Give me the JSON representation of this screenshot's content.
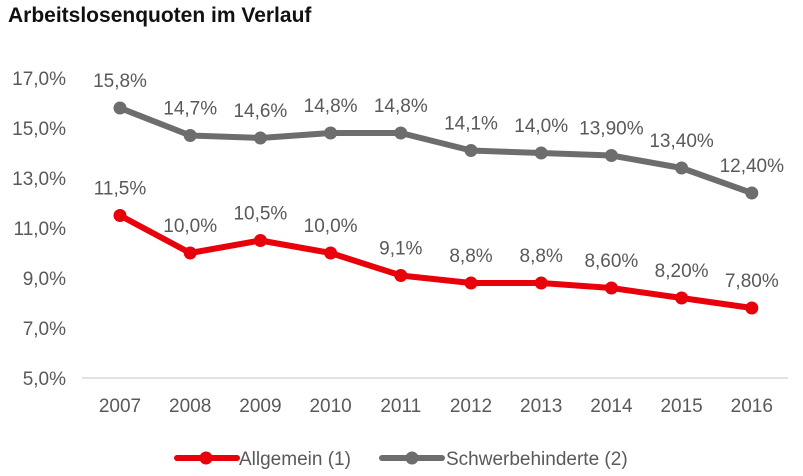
{
  "chart_data": {
    "type": "line",
    "title": "Arbeitslosenquoten im Verlauf",
    "categories": [
      "2007",
      "2008",
      "2009",
      "2010",
      "2011",
      "2012",
      "2013",
      "2014",
      "2015",
      "2016"
    ],
    "y_ticks": [
      "5,0%",
      "7,0%",
      "9,0%",
      "11,0%",
      "13,0%",
      "15,0%",
      "17,0%"
    ],
    "ylim": [
      5,
      17
    ],
    "grid": false,
    "legend_position": "bottom",
    "series": [
      {
        "name": "Allgemein (1)",
        "color": "#e8000b",
        "values": [
          11.5,
          10.0,
          10.5,
          10.0,
          9.1,
          8.8,
          8.8,
          8.6,
          8.2,
          7.8
        ],
        "labels": [
          "11,5%",
          "10,0%",
          "10,5%",
          "10,0%",
          "9,1%",
          "8,8%",
          "8,8%",
          "8,60%",
          "8,20%",
          "7,80%"
        ]
      },
      {
        "name": "Schwerbehinderte (2)",
        "color": "#6d6d6d",
        "values": [
          15.8,
          14.7,
          14.6,
          14.8,
          14.8,
          14.1,
          14.0,
          13.9,
          13.4,
          12.4
        ],
        "labels": [
          "15,8%",
          "14,7%",
          "14,6%",
          "14,8%",
          "14,8%",
          "14,1%",
          "14,0%",
          "13,90%",
          "13,40%",
          "12,40%"
        ]
      }
    ]
  }
}
